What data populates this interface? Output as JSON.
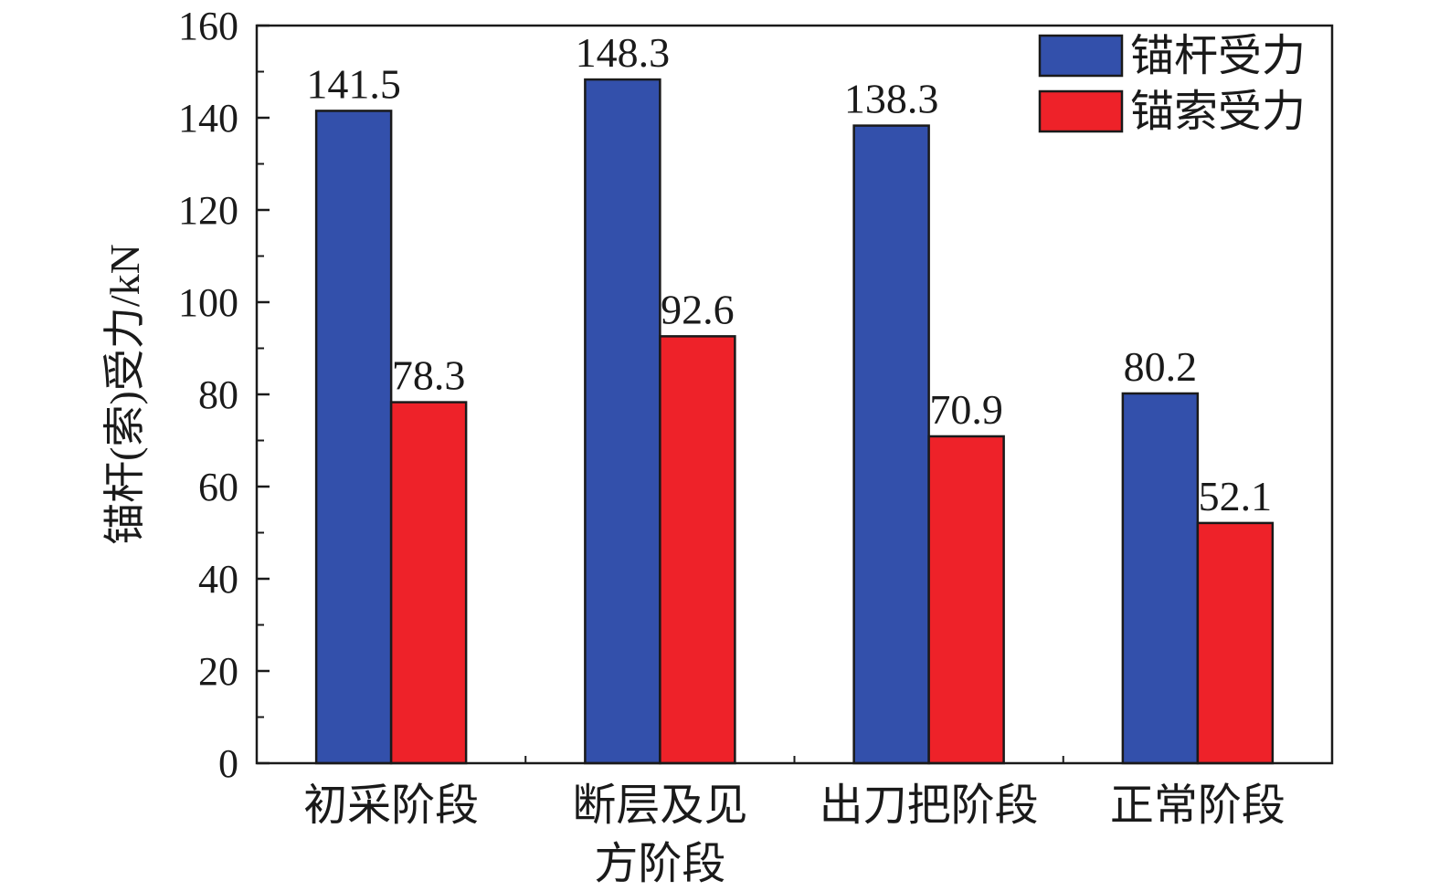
{
  "chart_data": {
    "type": "bar",
    "categories": [
      [
        "初采阶段"
      ],
      [
        "断层及见",
        "方阶段"
      ],
      [
        "出刀把阶段"
      ],
      [
        "正常阶段"
      ]
    ],
    "series": [
      {
        "name": "锚杆受力",
        "values": [
          141.5,
          148.3,
          138.3,
          80.2
        ],
        "color": "#3350ab"
      },
      {
        "name": "锚索受力",
        "values": [
          78.3,
          92.6,
          70.9,
          52.1
        ],
        "color": "#ee2229"
      }
    ],
    "data_labels": [
      [
        "141.5",
        "148.3",
        "138.3",
        "80.2"
      ],
      [
        "78.3",
        "92.6",
        "70.9",
        "52.1"
      ]
    ],
    "ylabel": "锚杆(索)受力/kN",
    "xlabel": "",
    "ylim": [
      0,
      160
    ],
    "yticks": [
      0,
      20,
      40,
      60,
      80,
      100,
      120,
      140,
      160
    ],
    "grid": false,
    "legend": "top-right"
  }
}
